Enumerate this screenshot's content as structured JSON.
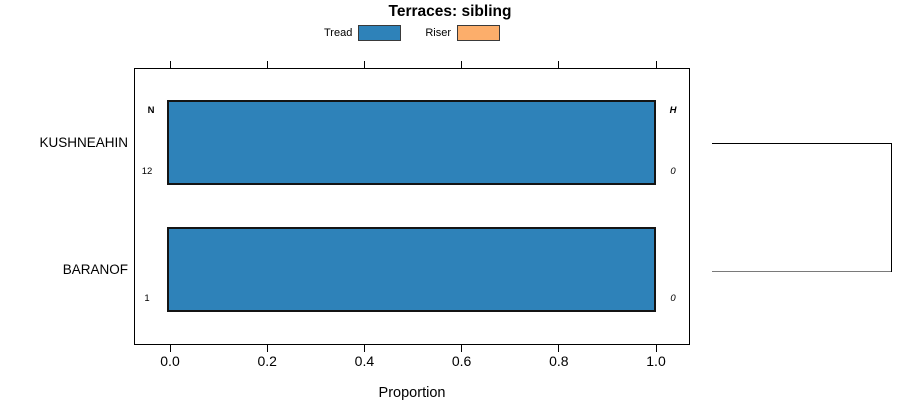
{
  "title": "Terraces: sibling",
  "legend": {
    "items": [
      {
        "label": "Tread",
        "color": "#2e82b9"
      },
      {
        "label": "Riser",
        "color": "#fcae6b"
      }
    ]
  },
  "chart_data": {
    "type": "bar",
    "orientation": "horizontal",
    "title": "Terraces: sibling",
    "categories": [
      "KUSHNEAHIN",
      "BARANOF"
    ],
    "series": [
      {
        "name": "Tread",
        "color": "#2e82b9",
        "values": [
          1.0,
          1.0
        ]
      },
      {
        "name": "Riser",
        "color": "#fcae6b",
        "values": [
          0.0,
          0.0
        ]
      }
    ],
    "xlabel": "Proportion",
    "xlim": [
      0.0,
      1.0
    ],
    "x_ticks": [
      0.0,
      0.2,
      0.4,
      0.6,
      0.8,
      1.0
    ],
    "x_tick_labels": [
      "0.0",
      "0.2",
      "0.4",
      "0.6",
      "0.8",
      "1.0"
    ],
    "grid": false,
    "legend_position": "top-center",
    "annotations": {
      "left_header": "N",
      "right_header": "H",
      "left_values": [
        "12",
        "1"
      ],
      "right_values": [
        "0",
        "0"
      ]
    },
    "bracket": {
      "rows_joined": [
        "KUSHNEAHIN",
        "BARANOF"
      ]
    }
  }
}
